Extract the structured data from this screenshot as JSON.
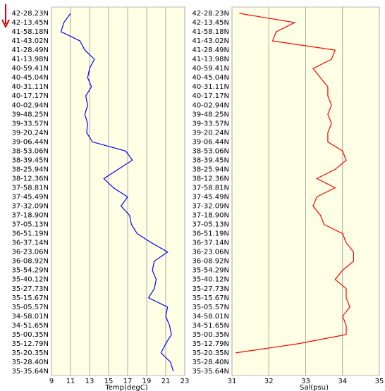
{
  "chart_data": [
    {
      "type": "line",
      "orientation": "horizontal",
      "x_label": "Temp(degC)",
      "color": "#0000ff",
      "grid": true,
      "categories": [
        "42-28.23N",
        "42-13.45N",
        "41-58.18N",
        "41-43.02N",
        "41-28.49N",
        "41-13.98N",
        "40-59.41N",
        "40-45.04N",
        "40-31.11N",
        "40-17.17N",
        "40-02.94N",
        "39-48.25N",
        "39-33.57N",
        "39-20.24N",
        "39-06.44N",
        "38-53.06N",
        "38-39.45N",
        "38-25.94N",
        "38-12.36N",
        "37-58.81N",
        "37-45.49N",
        "37-32.09N",
        "37-18.90N",
        "37-05.13N",
        "36-51.19N",
        "36-37.14N",
        "36-23.06N",
        "36-08.92N",
        "35-54.29N",
        "35-40.12N",
        "35-27.73N",
        "35-15.67N",
        "35-05.57N",
        "34-58.01N",
        "34-51.65N",
        "35-00.35N",
        "35-12.79N",
        "35-20.35N",
        "35-28.40N",
        "35-35.64N"
      ],
      "values": [
        11,
        10.3,
        10,
        12,
        12.5,
        13.5,
        13,
        12.8,
        13.2,
        12.6,
        12.8,
        12.5,
        12.8,
        12.7,
        13.3,
        16.8,
        17.5,
        16,
        14.5,
        15.5,
        17,
        16.3,
        17.2,
        17.4,
        18,
        19.5,
        21.2,
        19.8,
        19.6,
        20,
        19.8,
        19.2,
        21.2,
        21,
        21.4,
        21.6,
        21,
        20.5,
        21.5,
        21.8
      ],
      "xlim": [
        9,
        23
      ],
      "xticks": [
        9,
        11,
        13,
        15,
        17,
        19,
        21,
        23
      ]
    },
    {
      "type": "line",
      "orientation": "horizontal",
      "x_label": "Sal(psu)",
      "color": "#ff0000",
      "grid": true,
      "categories": [
        "42-28.23N",
        "42-13.45N",
        "41-58.18N",
        "41-43.02N",
        "41-28.49N",
        "41-13.98N",
        "40-59.41N",
        "40-45.04N",
        "40-31.11N",
        "40-17.17N",
        "40-02.94N",
        "39-48.25N",
        "39-33.57N",
        "39-20.24N",
        "39-06.44N",
        "38-53.06N",
        "38-39.45N",
        "38-25.94N",
        "38-12.36N",
        "37-58.81N",
        "37-45.49N",
        "37-32.09N",
        "37-18.90N",
        "37-05.13N",
        "36-51.19N",
        "36-37.14N",
        "36-23.06N",
        "36-08.92N",
        "35-54.29N",
        "35-40.12N",
        "35-27.73N",
        "35-15.67N",
        "35-05.57N",
        "34-58.01N",
        "34-51.65N",
        "35-00.35N",
        "35-12.79N",
        "35-20.35N",
        "35-28.40N",
        "35-35.64N"
      ],
      "values": [
        31.2,
        32.7,
        32.2,
        32.1,
        33.8,
        33.7,
        33.2,
        33.4,
        33.6,
        33.6,
        33.7,
        33.6,
        33.7,
        33.6,
        33.6,
        34,
        34.1,
        33.8,
        33.3,
        33.8,
        33.3,
        33.2,
        33.4,
        33.5,
        34,
        34.1,
        34.3,
        34.3,
        34,
        33.8,
        34.1,
        34.1,
        34.2,
        34,
        34.1,
        34.1,
        32.8,
        31.1,
        null,
        null
      ],
      "xlim": [
        31,
        35
      ],
      "xticks": [
        31,
        32,
        33,
        34,
        35
      ]
    }
  ]
}
